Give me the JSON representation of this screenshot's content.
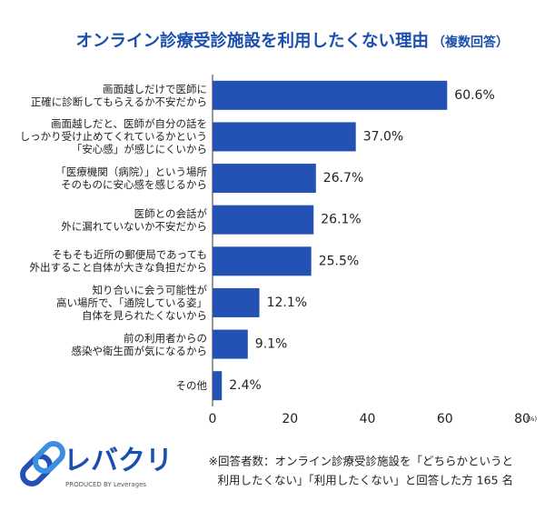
{
  "chart_data": {
    "type": "barh",
    "title": "オンライン診療受診施設を利用したくない理由",
    "subtitle": "（複数回答）",
    "categories": [
      "画面越しだけで医師に\n正確に診断してもらえるか不安だから",
      "画面越しだと、医師が自分の話を\nしっかり受け止めてくれているかという\n「安心感」が感じにくいから",
      "「医療機関（病院）」という場所\nそのものに安心感を感じるから",
      "医師との会話が\n外に漏れていないか不安だから",
      "そもそも近所の郵便局であっても\n外出すること自体が大きな負担だから",
      "知り合いに会う可能性が\n高い場所で、「通院している姿」\n自体を見られたくないから",
      "前の利用者からの\n感染や衛生面が気になるから",
      "その他"
    ],
    "values": [
      60.6,
      37.0,
      26.7,
      26.1,
      25.5,
      12.1,
      9.1,
      2.4
    ],
    "value_labels": [
      "60.6%",
      "37.0%",
      "26.7%",
      "26.1%",
      "25.5%",
      "12.1%",
      "9.1%",
      "2.4%"
    ],
    "color": "#2352b4",
    "xlim": [
      0,
      80
    ],
    "xticks": [
      0,
      20,
      40,
      60,
      80
    ],
    "x_unit": "(%)",
    "grid": false
  },
  "note": [
    "※回答者数：オンライン診療受診施設を「どちらかというと",
    "利用したくない」「利用したくない」と回答した方 165 名"
  ],
  "logo": {
    "name": "レバクリ",
    "tagline": "PRODUCED BY Leverages"
  }
}
